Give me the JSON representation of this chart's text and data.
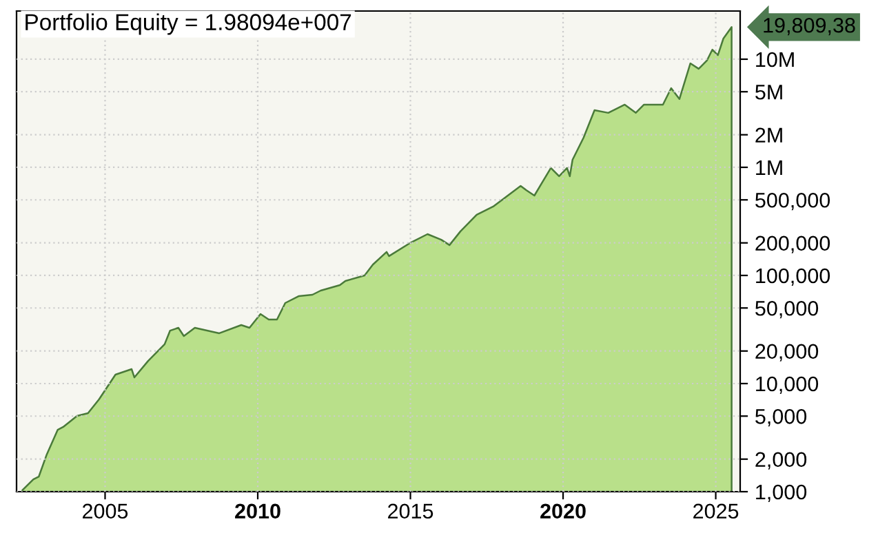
{
  "chart_data": {
    "type": "area",
    "title": "Portfolio Equity = 1.98094e+007",
    "x": [
      2002.29,
      2002.65,
      2002.83,
      2003.09,
      2003.45,
      2003.63,
      2004.08,
      2004.44,
      2004.8,
      2005.34,
      2005.87,
      2005.96,
      2006.41,
      2006.95,
      2007.13,
      2007.4,
      2007.58,
      2007.94,
      2008.74,
      2009.46,
      2009.73,
      2010.09,
      2010.36,
      2010.63,
      2010.9,
      2011.35,
      2011.79,
      2012.06,
      2012.69,
      2012.87,
      2013.5,
      2013.77,
      2014.22,
      2014.3,
      2015.02,
      2015.56,
      2016.01,
      2016.28,
      2016.64,
      2017.17,
      2017.71,
      2018.07,
      2018.61,
      2018.79,
      2019.06,
      2019.33,
      2019.6,
      2019.87,
      2020.13,
      2020.22,
      2020.31,
      2020.67,
      2021.03,
      2021.48,
      2022.02,
      2022.38,
      2022.65,
      2023.27,
      2023.54,
      2023.81,
      2024.17,
      2024.44,
      2024.71,
      2024.89,
      2025.07,
      2025.25,
      2025.52
    ],
    "series": [
      {
        "color": "#b9e08a",
        "values": [
          1030,
          1300,
          1380,
          2210,
          3740,
          3970,
          5020,
          5320,
          7140,
          12100,
          13600,
          11400,
          16200,
          23100,
          30900,
          32800,
          27500,
          32800,
          29200,
          34800,
          32800,
          44000,
          39100,
          39100,
          55600,
          64400,
          66300,
          72400,
          81500,
          88900,
          100000,
          126000,
          165000,
          151000,
          202000,
          241000,
          214000,
          191000,
          256000,
          364000,
          434000,
          517000,
          673000,
          616000,
          548000,
          735000,
          986000,
          827000,
          986000,
          827000,
          1175000,
          1879000,
          3380000,
          3190000,
          3800000,
          3190000,
          3800000,
          3800000,
          5400000,
          4280000,
          9160000,
          8150000,
          9710000,
          12270000,
          10900000,
          15520000,
          19809380
        ]
      }
    ],
    "annotations": [
      "19,809,38"
    ],
    "log": "y",
    "xlim": [
      2002.1,
      2025.8
    ],
    "xticks": [
      2005,
      2010,
      2015,
      2020,
      2025
    ],
    "ylim": [
      1000,
      27900000
    ],
    "yticks": [
      {
        "value": 1000,
        "label": "1,000"
      },
      {
        "value": 2000,
        "label": "2,000"
      },
      {
        "value": 5000,
        "label": "5,000"
      },
      {
        "value": 10000,
        "label": "10,000"
      },
      {
        "value": 20000,
        "label": "20,000"
      },
      {
        "value": 50000,
        "label": "50,000"
      },
      {
        "value": 100000,
        "label": "100,000"
      },
      {
        "value": 200000,
        "label": "200,000"
      },
      {
        "value": 500000,
        "label": "500,000"
      },
      {
        "value": 1000000,
        "label": "1M"
      },
      {
        "value": 2000000,
        "label": "2M"
      },
      {
        "value": 5000000,
        "label": "5M"
      },
      {
        "value": 10000000,
        "label": "10M"
      }
    ],
    "grid": true
  }
}
